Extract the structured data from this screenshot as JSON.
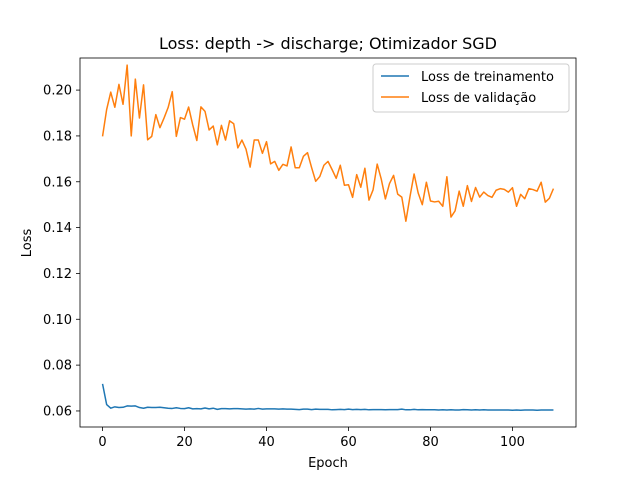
{
  "chart_data": {
    "type": "line",
    "title": "Loss: depth -> discharge; Otimizador SGD",
    "xlabel": "Epoch",
    "ylabel": "Loss",
    "xlim": [
      -5.5,
      115.5
    ],
    "ylim": [
      0.053,
      0.214
    ],
    "xticks": [
      0,
      20,
      40,
      60,
      80,
      100
    ],
    "yticks": [
      0.06,
      0.08,
      0.1,
      0.12,
      0.14,
      0.16,
      0.18,
      0.2
    ],
    "ytick_labels": [
      "0.06",
      "0.08",
      "0.10",
      "0.12",
      "0.14",
      "0.16",
      "0.18",
      "0.20"
    ],
    "grid": false,
    "legend_position": "top-right",
    "series": [
      {
        "name": "Loss de treinamento",
        "color": "#1f77b4",
        "values": [
          0.0718,
          0.0628,
          0.0612,
          0.0618,
          0.0615,
          0.0616,
          0.0622,
          0.0621,
          0.0622,
          0.0615,
          0.0612,
          0.0616,
          0.0615,
          0.0615,
          0.0616,
          0.0614,
          0.0612,
          0.0611,
          0.0614,
          0.0611,
          0.061,
          0.0614,
          0.0609,
          0.061,
          0.0609,
          0.0613,
          0.0609,
          0.0612,
          0.0607,
          0.061,
          0.061,
          0.0609,
          0.061,
          0.061,
          0.0609,
          0.0608,
          0.0609,
          0.0608,
          0.0611,
          0.0608,
          0.0609,
          0.0609,
          0.0609,
          0.0608,
          0.0609,
          0.0608,
          0.0608,
          0.0607,
          0.0606,
          0.0608,
          0.0608,
          0.0606,
          0.0608,
          0.0607,
          0.0607,
          0.0607,
          0.0605,
          0.0606,
          0.0607,
          0.0606,
          0.0608,
          0.0606,
          0.0607,
          0.0606,
          0.0607,
          0.0605,
          0.0606,
          0.0606,
          0.0606,
          0.0605,
          0.0606,
          0.0606,
          0.0606,
          0.0608,
          0.0605,
          0.0605,
          0.0607,
          0.0605,
          0.0606,
          0.0605,
          0.0605,
          0.0605,
          0.0604,
          0.0605,
          0.0604,
          0.0605,
          0.0604,
          0.0604,
          0.0606,
          0.0605,
          0.0604,
          0.0605,
          0.0604,
          0.0605,
          0.0604,
          0.0604,
          0.0604,
          0.0604,
          0.0604,
          0.0604,
          0.0603,
          0.0604,
          0.0603,
          0.0604,
          0.0604,
          0.0604,
          0.0603,
          0.0604,
          0.0604,
          0.0604,
          0.0604
        ]
      },
      {
        "name": "Loss de validação",
        "color": "#ff7f0e",
        "values": [
          0.1798,
          0.1915,
          0.1991,
          0.1925,
          0.2025,
          0.1938,
          0.2109,
          0.18,
          0.2048,
          0.1878,
          0.2023,
          0.1783,
          0.1798,
          0.1893,
          0.1836,
          0.1878,
          0.1924,
          0.1993,
          0.1798,
          0.188,
          0.1873,
          0.1926,
          0.1848,
          0.178,
          0.1927,
          0.1907,
          0.1826,
          0.1843,
          0.1761,
          0.1846,
          0.1782,
          0.1866,
          0.1853,
          0.1748,
          0.1782,
          0.1742,
          0.1664,
          0.1782,
          0.1782,
          0.1724,
          0.1775,
          0.1678,
          0.1689,
          0.165,
          0.1676,
          0.1669,
          0.1752,
          0.1661,
          0.1661,
          0.1711,
          0.1727,
          0.1662,
          0.1602,
          0.1623,
          0.1672,
          0.1689,
          0.1653,
          0.1615,
          0.1672,
          0.1585,
          0.1587,
          0.1532,
          0.1631,
          0.1576,
          0.1659,
          0.152,
          0.1565,
          0.1677,
          0.1611,
          0.1525,
          0.1592,
          0.1628,
          0.1546,
          0.1533,
          0.1428,
          0.1535,
          0.1634,
          0.1551,
          0.15,
          0.1598,
          0.1516,
          0.1512,
          0.1515,
          0.1493,
          0.1622,
          0.1446,
          0.1473,
          0.1559,
          0.1493,
          0.1583,
          0.1514,
          0.1575,
          0.1533,
          0.1555,
          0.154,
          0.1532,
          0.1563,
          0.157,
          0.1567,
          0.1555,
          0.1574,
          0.1493,
          0.1545,
          0.1526,
          0.157,
          0.1566,
          0.1559,
          0.1598,
          0.1511,
          0.1528,
          0.157
        ]
      }
    ]
  }
}
